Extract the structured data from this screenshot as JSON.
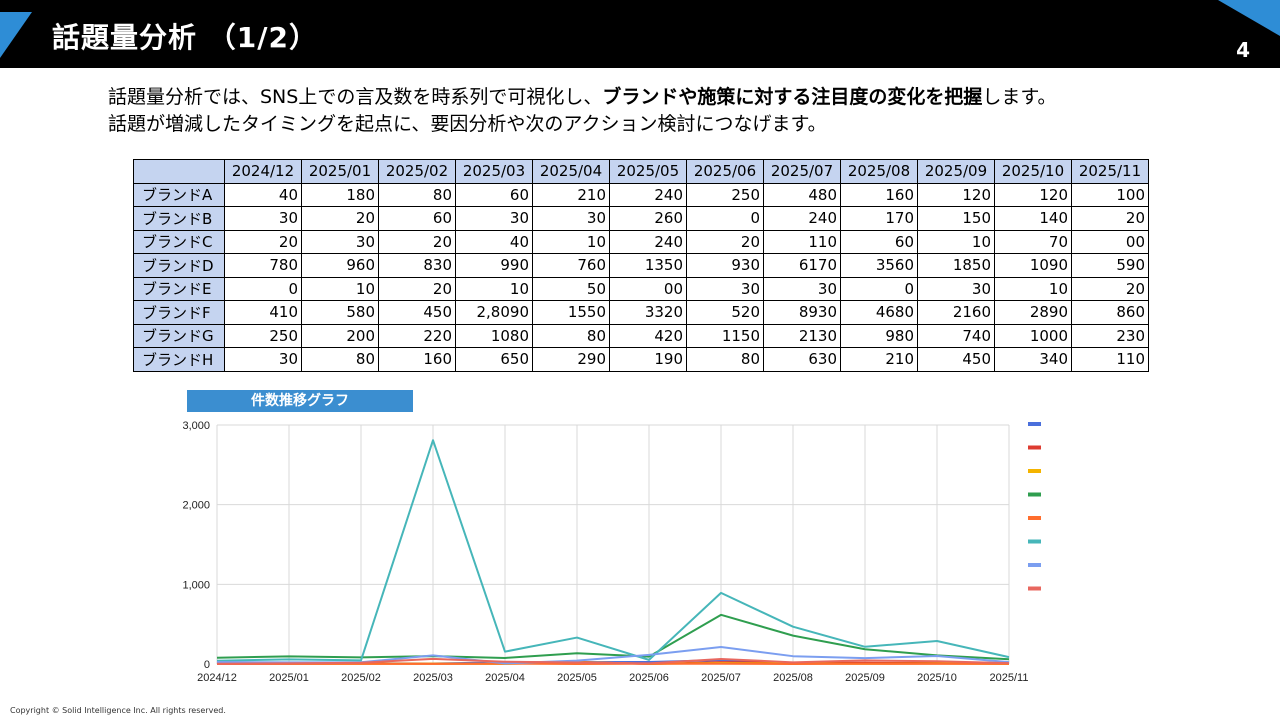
{
  "slide": {
    "title": "話題量分析 （1/2）",
    "page_number": "4",
    "copyright": "Copyright © Solid Intelligence Inc. All rights reserved."
  },
  "intro": {
    "line1_pre": "話題量分析では、SNS上での言及数を時系列で可視化し、",
    "line1_bold": "ブランドや施策に対する注目度の変化を把握",
    "line1_post": "します。",
    "line2": "話題が増減したタイミングを起点に、要因分析や次のアクション検討につなげます。"
  },
  "table": {
    "months": [
      "2024/12",
      "2025/01",
      "2025/02",
      "2025/03",
      "2025/04",
      "2025/05",
      "2025/06",
      "2025/07",
      "2025/08",
      "2025/09",
      "2025/10",
      "2025/11"
    ],
    "rows": [
      {
        "label": "ブランドA",
        "values": [
          "40",
          "180",
          "80",
          "60",
          "210",
          "240",
          "250",
          "480",
          "160",
          "120",
          "120",
          "100"
        ]
      },
      {
        "label": "ブランドB",
        "values": [
          "30",
          "20",
          "60",
          "30",
          "30",
          "260",
          "0",
          "240",
          "170",
          "150",
          "140",
          "20"
        ]
      },
      {
        "label": "ブランドC",
        "values": [
          "20",
          "30",
          "20",
          "40",
          "10",
          "240",
          "20",
          "110",
          "60",
          "10",
          "70",
          "00"
        ]
      },
      {
        "label": "ブランドD",
        "values": [
          "780",
          "960",
          "830",
          "990",
          "760",
          "1350",
          "930",
          "6170",
          "3560",
          "1850",
          "1090",
          "590"
        ]
      },
      {
        "label": "ブランドE",
        "values": [
          "0",
          "10",
          "20",
          "10",
          "50",
          "00",
          "30",
          "30",
          "0",
          "30",
          "10",
          "20"
        ]
      },
      {
        "label": "ブランドF",
        "values": [
          "410",
          "580",
          "450",
          "2,8090",
          "1550",
          "3320",
          "520",
          "8930",
          "4680",
          "2160",
          "2890",
          "860"
        ]
      },
      {
        "label": "ブランドG",
        "values": [
          "250",
          "200",
          "220",
          "1080",
          "80",
          "420",
          "1150",
          "2130",
          "980",
          "740",
          "1000",
          "230"
        ]
      },
      {
        "label": "ブランドH",
        "values": [
          "30",
          "80",
          "160",
          "650",
          "290",
          "190",
          "80",
          "630",
          "210",
          "450",
          "340",
          "110"
        ]
      }
    ]
  },
  "chart_data": {
    "type": "line",
    "title": "件数推移グラフ",
    "categories": [
      "2024/12",
      "2025/01",
      "2025/02",
      "2025/03",
      "2025/04",
      "2025/05",
      "2025/06",
      "2025/07",
      "2025/08",
      "2025/09",
      "2025/10",
      "2025/11"
    ],
    "ylim": [
      0,
      3000
    ],
    "yticks": [
      0,
      1000,
      2000,
      3000
    ],
    "ytick_labels": [
      "0",
      "1,000",
      "2,000",
      "3,000"
    ],
    "grid": true,
    "legend": "right",
    "series": [
      {
        "name": "",
        "color": "#4a6fdc",
        "values": [
          4,
          18,
          8,
          6,
          21,
          24,
          25,
          48,
          16,
          12,
          12,
          10
        ]
      },
      {
        "name": "",
        "color": "#dd3b30",
        "values": [
          3,
          2,
          6,
          3,
          3,
          26,
          0,
          24,
          17,
          15,
          14,
          2
        ]
      },
      {
        "name": "",
        "color": "#f4b400",
        "values": [
          2,
          3,
          2,
          4,
          1,
          24,
          2,
          11,
          6,
          1,
          7,
          0
        ]
      },
      {
        "name": "",
        "color": "#2f9e4f",
        "values": [
          78,
          96,
          83,
          99,
          76,
          135,
          93,
          617,
          356,
          185,
          109,
          59
        ]
      },
      {
        "name": "",
        "color": "#ff6d2d",
        "values": [
          0,
          1,
          2,
          1,
          5,
          0,
          3,
          3,
          0,
          3,
          1,
          2
        ]
      },
      {
        "name": "",
        "color": "#46b6b9",
        "values": [
          41,
          58,
          45,
          2809,
          155,
          332,
          52,
          893,
          468,
          216,
          289,
          86
        ]
      },
      {
        "name": "",
        "color": "#7b9ef0",
        "values": [
          25,
          20,
          22,
          108,
          8,
          42,
          115,
          213,
          98,
          74,
          100,
          23
        ]
      },
      {
        "name": "",
        "color": "#e8675f",
        "values": [
          3,
          8,
          16,
          65,
          29,
          19,
          8,
          63,
          21,
          45,
          34,
          11
        ]
      }
    ]
  }
}
